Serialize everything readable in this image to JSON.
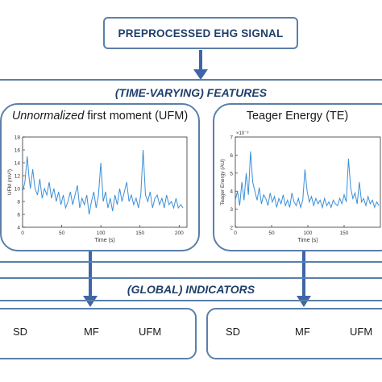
{
  "header": {
    "title": "PREPROCESSED EHG SIGNAL"
  },
  "features_band": {
    "label": "(TIME-VARYING) FEATURES"
  },
  "panels": [
    {
      "title_italic": "Unnormalized",
      "title_rest": " first moment (UFM)",
      "chart": {
        "type": "line",
        "ylabel": "UFM (mV²)",
        "xlabel": "Time (s)",
        "xlim": [
          0,
          210
        ],
        "ylim": [
          4,
          18
        ],
        "xticks": [
          "0",
          "50",
          "100",
          "150",
          "200"
        ],
        "yticks": [
          "4",
          "6",
          "8",
          "10",
          "12",
          "14",
          "16",
          "18"
        ],
        "series_color": "#3c8fd6",
        "x": [
          0,
          3,
          6,
          8,
          10,
          13,
          16,
          19,
          22,
          25,
          28,
          31,
          34,
          37,
          40,
          43,
          46,
          49,
          52,
          55,
          58,
          61,
          64,
          67,
          70,
          73,
          76,
          79,
          82,
          85,
          88,
          91,
          94,
          97,
          100,
          103,
          106,
          109,
          112,
          115,
          118,
          121,
          124,
          127,
          130,
          133,
          136,
          139,
          142,
          145,
          148,
          151,
          154,
          157,
          160,
          163,
          166,
          169,
          172,
          175,
          178,
          181,
          184,
          187,
          190,
          193,
          196,
          199,
          202,
          205
        ],
        "y": [
          9.5,
          11,
          15,
          12,
          10,
          13,
          10,
          9,
          11.5,
          8.5,
          10,
          9,
          11,
          8.5,
          10,
          8,
          9.5,
          7.5,
          9,
          7,
          8,
          9.5,
          7.5,
          9,
          10.5,
          7,
          8.5,
          7.5,
          9,
          6,
          8,
          9.5,
          7,
          9,
          14,
          8,
          9.5,
          7,
          8.5,
          6.5,
          9,
          7.5,
          10,
          8,
          9.5,
          11,
          8,
          9,
          7.5,
          8.5,
          7,
          9,
          16,
          9,
          8,
          9.5,
          7,
          8.5,
          9,
          7.5,
          8.5,
          7,
          9,
          7.5,
          8,
          7,
          8.5,
          7,
          7.5,
          7
        ]
      }
    },
    {
      "title": "Teager Energy (TE)",
      "chart": {
        "type": "line",
        "ylabel": "Teager Energy (AU)",
        "xlabel": "Time (s)",
        "exponent": "×10⁻³",
        "xlim": [
          0,
          200
        ],
        "ylim": [
          2,
          7
        ],
        "xticks": [
          "0",
          "50",
          "100",
          "150"
        ],
        "yticks": [
          "2",
          "3",
          "4",
          "5",
          "6",
          "7"
        ],
        "series_color": "#3c8fd6",
        "x": [
          0,
          3,
          6,
          9,
          12,
          15,
          18,
          21,
          24,
          27,
          30,
          33,
          36,
          39,
          42,
          45,
          48,
          51,
          54,
          57,
          60,
          63,
          66,
          69,
          72,
          75,
          78,
          81,
          84,
          87,
          90,
          93,
          96,
          99,
          102,
          105,
          108,
          111,
          114,
          117,
          120,
          123,
          126,
          129,
          132,
          135,
          138,
          141,
          144,
          147,
          150,
          153,
          156,
          159,
          162,
          165,
          168,
          171,
          174,
          177,
          180,
          183,
          186,
          189,
          192,
          195,
          198
        ],
        "y": [
          3.5,
          4,
          3.2,
          4.5,
          3.5,
          5,
          3.8,
          6.2,
          4.5,
          4,
          3.5,
          4.2,
          3.3,
          3.8,
          3.6,
          3.2,
          3.9,
          3.4,
          3.7,
          3.1,
          3.6,
          3.3,
          3.8,
          3.2,
          3.5,
          3.1,
          3.9,
          3.4,
          3.2,
          3.6,
          3.1,
          3.5,
          5.2,
          4,
          3.4,
          3.7,
          3.2,
          3.6,
          3.3,
          3.5,
          3.1,
          3.6,
          3.2,
          3.4,
          3.1,
          3.5,
          3.3,
          3.2,
          3.6,
          3.3,
          3.8,
          3.4,
          5.8,
          4.2,
          3.6,
          3.9,
          3.3,
          4.5,
          3.4,
          3.6,
          3.2,
          3.7,
          3.3,
          3.5,
          3.1,
          3.4,
          3.2
        ]
      }
    }
  ],
  "indicators_band": {
    "label": "(GLOBAL) INDICATORS"
  },
  "indicator_groups": [
    {
      "items": [
        "SD",
        "MF",
        "UFM"
      ]
    },
    {
      "items": [
        "SD",
        "MF",
        "UFM"
      ]
    }
  ],
  "colors": {
    "border": "#5b7fa9",
    "arrow": "#3d66a8",
    "title_text": "#1f3f6b",
    "line": "#3c8fd6"
  }
}
